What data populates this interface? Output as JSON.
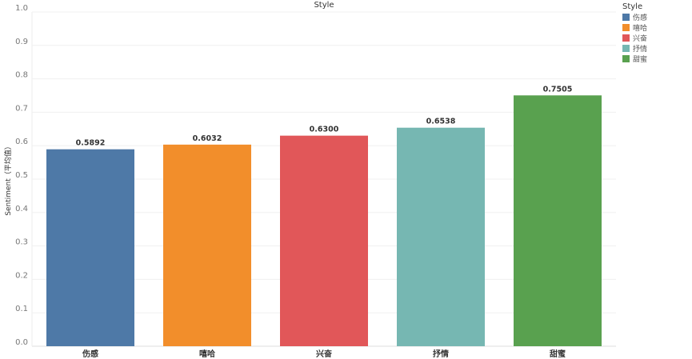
{
  "chart_data": {
    "type": "bar",
    "title": "Style",
    "xlabel": "",
    "ylabel": "Sentiment（平均值）",
    "categories": [
      "伤感",
      "嘻哈",
      "兴奋",
      "抒情",
      "甜蜜"
    ],
    "values": [
      0.5892,
      0.6032,
      0.63,
      0.6538,
      0.7505
    ],
    "data_labels": [
      "0.5892",
      "0.6032",
      "0.6300",
      "0.6538",
      "0.7505"
    ],
    "colors": [
      "#4e79a7",
      "#f28e2b",
      "#e15759",
      "#76b7b2",
      "#59a14f"
    ],
    "ylim": [
      0,
      1.0
    ],
    "yticks": [
      "0.0",
      "0.1",
      "0.2",
      "0.3",
      "0.4",
      "0.5",
      "0.6",
      "0.7",
      "0.8",
      "0.9",
      "1.0"
    ],
    "grid": true,
    "legend": {
      "title": "Style",
      "placement": "top-right",
      "entries": [
        "伤感",
        "嘻哈",
        "兴奋",
        "抒情",
        "甜蜜"
      ]
    }
  }
}
